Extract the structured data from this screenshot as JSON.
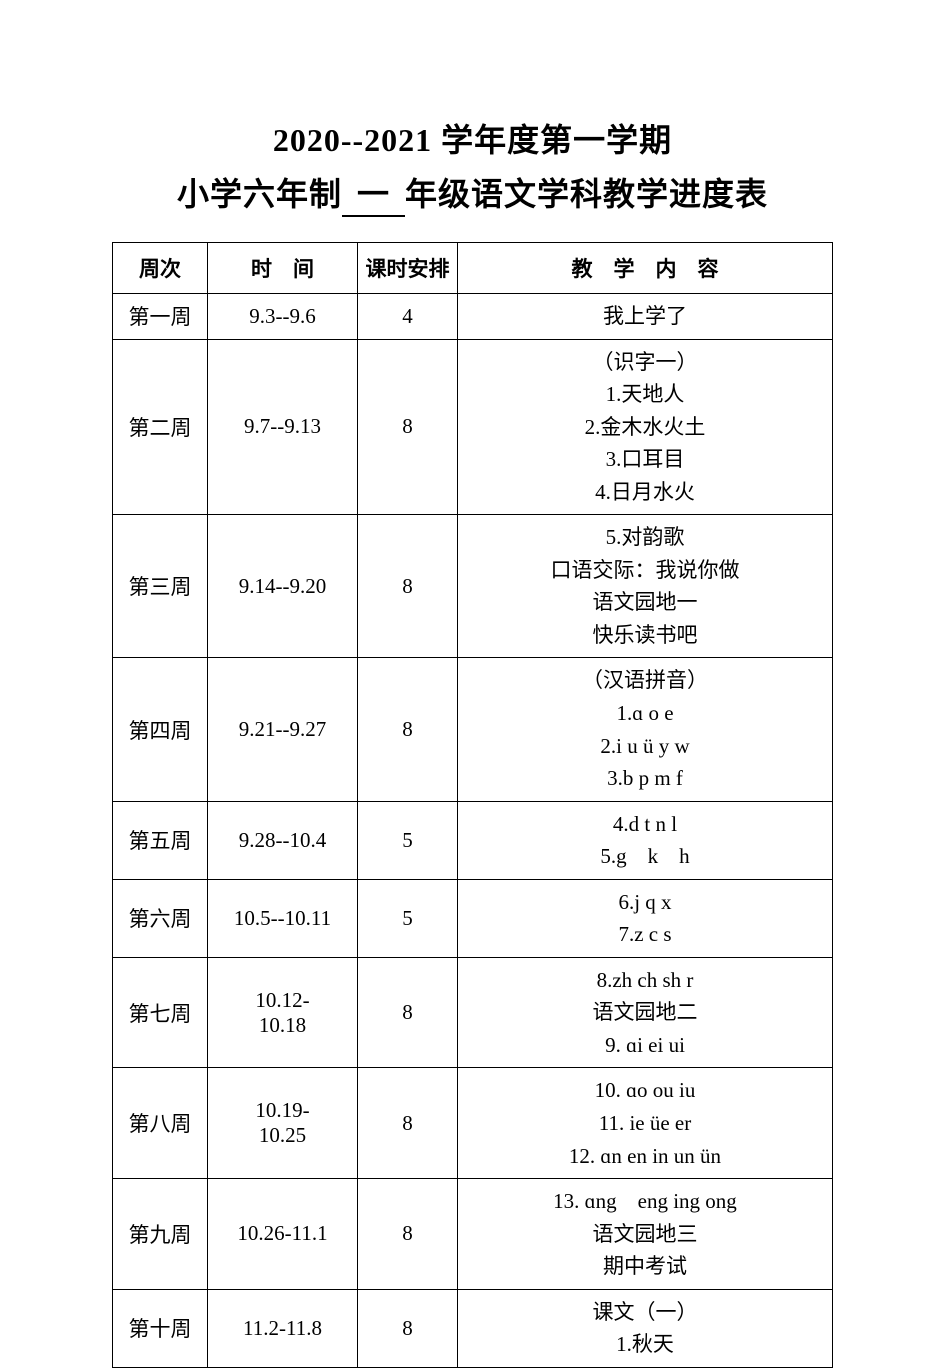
{
  "title": {
    "line1": "2020--2021 学年度第一学期",
    "line2_prefix": "小学六年制",
    "line2_grade": "一",
    "line2_suffix": "年级语文学科教学进度表"
  },
  "headers": {
    "week": "周次",
    "time": "时　间",
    "hours": "课时安排",
    "content": "教　学　内　容"
  },
  "rows": [
    {
      "week": "第一周",
      "time": "9.3--9.6",
      "hours": "4",
      "content": [
        "我上学了"
      ]
    },
    {
      "week": "第二周",
      "time": "9.7--9.13",
      "hours": "8",
      "content": [
        "（识字一）",
        "1.天地人",
        "2.金木水火土",
        "3.口耳目",
        "4.日月水火"
      ]
    },
    {
      "week": "第三周",
      "time": "9.14--9.20",
      "hours": "8",
      "content": [
        "5.对韵歌",
        "口语交际：我说你做",
        "语文园地一",
        "快乐读书吧"
      ]
    },
    {
      "week": "第四周",
      "time": "9.21--9.27",
      "hours": "8",
      "content": [
        "（汉语拼音）",
        "1.ɑ o e",
        "2.i u ü y w",
        "3.b p m f"
      ]
    },
    {
      "week": "第五周",
      "time": "9.28--10.4",
      "hours": "5",
      "content": [
        "4.d t n l",
        "5.g　k　h"
      ]
    },
    {
      "week": "第六周",
      "time": "10.5--10.11",
      "hours": "5",
      "hoursAlign": "bottom",
      "content": [
        "6.j q x",
        "7.z c s"
      ]
    },
    {
      "week": "第七周",
      "time": "10.12-10.18",
      "timeMultiline": true,
      "hours": "8",
      "content": [
        "8.zh ch sh r",
        "语文园地二",
        "9. ɑi ei ui"
      ]
    },
    {
      "week": "第八周",
      "time": "10.19-10.25",
      "timeMultiline": true,
      "hours": "8",
      "content": [
        "10. ɑo ou iu",
        "11. ie üe er",
        "12. ɑn en in un ün"
      ]
    },
    {
      "week": "第九周",
      "time": "10.26-11.1",
      "hours": "8",
      "content": [
        "13. ɑng　eng ing ong",
        "语文园地三",
        "期中考试"
      ]
    },
    {
      "week": "第十周",
      "time": "11.2-11.8",
      "hours": "8",
      "content": [
        "课文（一）",
        "1.秋天"
      ]
    }
  ]
}
